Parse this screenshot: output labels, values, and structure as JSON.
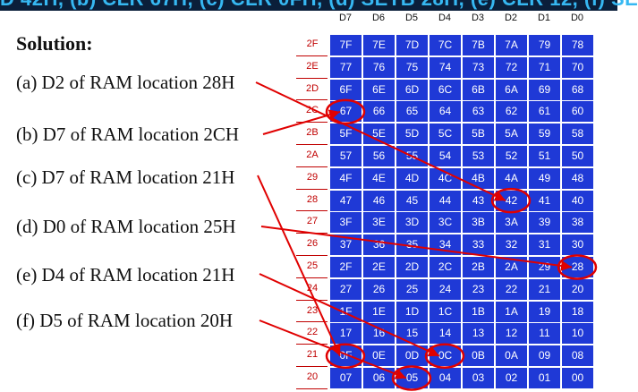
{
  "banner_text": "D 42H, (b) CLR 67H, (c) CLR 0FH, (d) SETB 28H, (e) CLR 12, (f) SE",
  "heading": "Solution:",
  "questions": [
    "(a) D2 of RAM location 28H",
    "(b) D7 of RAM location 2CH",
    "(c) D7 of RAM location 21H",
    "(d) D0 of RAM location 25H",
    "(e) D4 of RAM location 21H",
    "(f) D5 of RAM location 20H"
  ],
  "table": {
    "col_headers": [
      "D7",
      "D6",
      "D5",
      "D4",
      "D3",
      "D2",
      "D1",
      "D0"
    ],
    "rows": [
      {
        "addr": "2F",
        "cells": [
          "7F",
          "7E",
          "7D",
          "7C",
          "7B",
          "7A",
          "79",
          "78"
        ]
      },
      {
        "addr": "2E",
        "cells": [
          "77",
          "76",
          "75",
          "74",
          "73",
          "72",
          "71",
          "70"
        ]
      },
      {
        "addr": "2D",
        "cells": [
          "6F",
          "6E",
          "6D",
          "6C",
          "6B",
          "6A",
          "69",
          "68"
        ]
      },
      {
        "addr": "2C",
        "cells": [
          "67",
          "66",
          "65",
          "64",
          "63",
          "62",
          "61",
          "60"
        ]
      },
      {
        "addr": "2B",
        "cells": [
          "5F",
          "5E",
          "5D",
          "5C",
          "5B",
          "5A",
          "59",
          "58"
        ]
      },
      {
        "addr": "2A",
        "cells": [
          "57",
          "56",
          "55",
          "54",
          "53",
          "52",
          "51",
          "50"
        ]
      },
      {
        "addr": "29",
        "cells": [
          "4F",
          "4E",
          "4D",
          "4C",
          "4B",
          "4A",
          "49",
          "48"
        ]
      },
      {
        "addr": "28",
        "cells": [
          "47",
          "46",
          "45",
          "44",
          "43",
          "42",
          "41",
          "40"
        ]
      },
      {
        "addr": "27",
        "cells": [
          "3F",
          "3E",
          "3D",
          "3C",
          "3B",
          "3A",
          "39",
          "38"
        ]
      },
      {
        "addr": "26",
        "cells": [
          "37",
          "36",
          "35",
          "34",
          "33",
          "32",
          "31",
          "30"
        ]
      },
      {
        "addr": "25",
        "cells": [
          "2F",
          "2E",
          "2D",
          "2C",
          "2B",
          "2A",
          "29",
          "28"
        ]
      },
      {
        "addr": "24",
        "cells": [
          "27",
          "26",
          "25",
          "24",
          "23",
          "22",
          "21",
          "20"
        ]
      },
      {
        "addr": "23",
        "cells": [
          "1F",
          "1E",
          "1D",
          "1C",
          "1B",
          "1A",
          "19",
          "18"
        ]
      },
      {
        "addr": "22",
        "cells": [
          "17",
          "16",
          "15",
          "14",
          "13",
          "12",
          "11",
          "10"
        ]
      },
      {
        "addr": "21",
        "cells": [
          "0F",
          "0E",
          "0D",
          "0C",
          "0B",
          "0A",
          "09",
          "08"
        ]
      },
      {
        "addr": "20",
        "cells": [
          "07",
          "06",
          "05",
          "04",
          "03",
          "02",
          "01",
          "00"
        ]
      }
    ]
  },
  "highlighted_cells": [
    "42",
    "67",
    "0F",
    "28",
    "0C",
    "05"
  ],
  "colors": {
    "cell_fill": "#1f39d6",
    "cell_text": "#ffffff",
    "highlight": "#e00000",
    "banner_bg": "#0b1f3a",
    "banner_text": "#36b8f2"
  }
}
